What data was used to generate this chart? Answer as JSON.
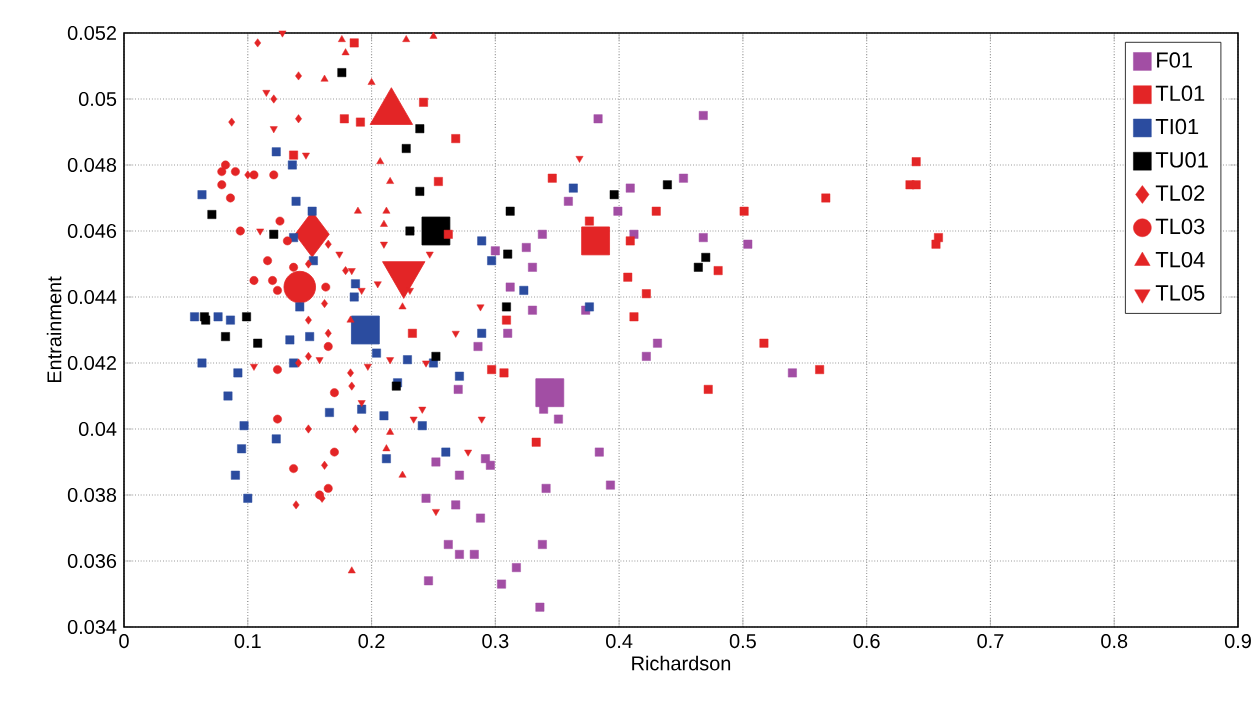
{
  "chart_data": {
    "type": "scatter",
    "xlabel": "Richardson",
    "ylabel": "Entrainment",
    "xlim": [
      0,
      0.9
    ],
    "ylim": [
      0.034,
      0.052
    ],
    "xticks": [
      0,
      0.1,
      0.2,
      0.3,
      0.4,
      0.5,
      0.6,
      0.7,
      0.8,
      0.9
    ],
    "yticks": [
      0.034,
      0.036,
      0.038,
      0.04,
      0.042,
      0.044,
      0.046,
      0.048,
      0.05,
      0.052
    ],
    "grid": true,
    "legend": "top right",
    "series": [
      {
        "name": "F01",
        "color": "#a24ea4",
        "marker": "square",
        "x": [
          0.383,
          0.468,
          0.409,
          0.452,
          0.359,
          0.399,
          0.338,
          0.412,
          0.468,
          0.325,
          0.3,
          0.33,
          0.312,
          0.373,
          0.33,
          0.31,
          0.286,
          0.27,
          0.339,
          0.351,
          0.384,
          0.252,
          0.292,
          0.296,
          0.271,
          0.268,
          0.244,
          0.288,
          0.341,
          0.393,
          0.262,
          0.271,
          0.283,
          0.338,
          0.246,
          0.317,
          0.305,
          0.336,
          0.504,
          0.54,
          0.431,
          0.422
        ],
        "values": [
          0.0494,
          0.0495,
          0.0473,
          0.0476,
          0.0469,
          0.0466,
          0.0459,
          0.0459,
          0.0458,
          0.0455,
          0.0454,
          0.0449,
          0.0443,
          0.0436,
          0.0436,
          0.0429,
          0.0425,
          0.0412,
          0.0406,
          0.0403,
          0.0393,
          0.039,
          0.0391,
          0.0389,
          0.0386,
          0.0377,
          0.0379,
          0.0373,
          0.0382,
          0.0383,
          0.0365,
          0.0362,
          0.0362,
          0.0365,
          0.0354,
          0.0358,
          0.0353,
          0.0346,
          0.0456,
          0.0417,
          0.0426,
          0.0422
        ]
      },
      {
        "name": "TL01",
        "color": "#e32526",
        "marker": "square",
        "x": [
          0.242,
          0.268,
          0.254,
          0.346,
          0.43,
          0.376,
          0.409,
          0.262,
          0.407,
          0.422,
          0.48,
          0.412,
          0.309,
          0.233,
          0.297,
          0.307,
          0.472,
          0.333,
          0.186,
          0.178,
          0.191,
          0.137,
          0.64,
          0.635,
          0.64,
          0.567,
          0.501,
          0.658,
          0.656,
          0.517,
          0.562
        ],
        "values": [
          0.0499,
          0.0488,
          0.0475,
          0.0476,
          0.0466,
          0.0463,
          0.0457,
          0.0459,
          0.0446,
          0.0441,
          0.0448,
          0.0434,
          0.0433,
          0.0429,
          0.0418,
          0.0417,
          0.0412,
          0.0396,
          0.0517,
          0.0494,
          0.0493,
          0.0483,
          0.0481,
          0.0474,
          0.0474,
          0.047,
          0.0466,
          0.0458,
          0.0456,
          0.0426,
          0.0418
        ]
      },
      {
        "name": "TI01",
        "color": "#2b4c9f",
        "marker": "square",
        "x": [
          0.123,
          0.136,
          0.063,
          0.139,
          0.152,
          0.137,
          0.153,
          0.187,
          0.186,
          0.142,
          0.057,
          0.076,
          0.086,
          0.134,
          0.15,
          0.063,
          0.092,
          0.084,
          0.137,
          0.229,
          0.221,
          0.166,
          0.192,
          0.21,
          0.241,
          0.097,
          0.095,
          0.123,
          0.09,
          0.1,
          0.212,
          0.204,
          0.25,
          0.363,
          0.289,
          0.297,
          0.323,
          0.376,
          0.289,
          0.271,
          0.26
        ],
        "values": [
          0.0484,
          0.048,
          0.0471,
          0.0469,
          0.0466,
          0.0458,
          0.0451,
          0.0444,
          0.044,
          0.0437,
          0.0434,
          0.0434,
          0.0433,
          0.0427,
          0.0428,
          0.042,
          0.0417,
          0.041,
          0.042,
          0.0421,
          0.0414,
          0.0405,
          0.0406,
          0.0404,
          0.0401,
          0.0401,
          0.0394,
          0.0397,
          0.0386,
          0.0379,
          0.0391,
          0.0423,
          0.042,
          0.0473,
          0.0457,
          0.0451,
          0.0442,
          0.0437,
          0.0429,
          0.0416,
          0.0393
        ]
      },
      {
        "name": "TU01",
        "color": "#000000",
        "marker": "square",
        "x": [
          0.176,
          0.239,
          0.228,
          0.239,
          0.071,
          0.121,
          0.231,
          0.099,
          0.065,
          0.066,
          0.082,
          0.108,
          0.22,
          0.252,
          0.312,
          0.31,
          0.309,
          0.396,
          0.439,
          0.47,
          0.464
        ],
        "values": [
          0.0508,
          0.0491,
          0.0485,
          0.0472,
          0.0465,
          0.0459,
          0.046,
          0.0434,
          0.0434,
          0.0433,
          0.0428,
          0.0426,
          0.0413,
          0.0422,
          0.0466,
          0.0453,
          0.0437,
          0.0471,
          0.0474,
          0.0452,
          0.0449
        ]
      },
      {
        "name": "TL02",
        "color": "#e32526",
        "marker": "diamond",
        "x": [
          0.108,
          0.141,
          0.087,
          0.141,
          0.121,
          0.1,
          0.165,
          0.149,
          0.179,
          0.162,
          0.149,
          0.165,
          0.149,
          0.141,
          0.183,
          0.184,
          0.149,
          0.187,
          0.162,
          0.16,
          0.139
        ],
        "values": [
          0.0517,
          0.0507,
          0.0493,
          0.0494,
          0.05,
          0.0477,
          0.0456,
          0.045,
          0.0448,
          0.0438,
          0.0433,
          0.0429,
          0.0422,
          0.042,
          0.0417,
          0.0413,
          0.04,
          0.04,
          0.0389,
          0.0379,
          0.0377
        ]
      },
      {
        "name": "TL03",
        "color": "#e32526",
        "marker": "circle",
        "x": [
          0.082,
          0.09,
          0.079,
          0.079,
          0.105,
          0.121,
          0.086,
          0.094,
          0.126,
          0.132,
          0.116,
          0.137,
          0.105,
          0.12,
          0.124,
          0.163,
          0.165,
          0.124,
          0.17,
          0.124,
          0.17,
          0.137,
          0.165,
          0.158
        ],
        "values": [
          0.048,
          0.0478,
          0.0478,
          0.0474,
          0.0477,
          0.0477,
          0.047,
          0.046,
          0.0463,
          0.0457,
          0.0451,
          0.0449,
          0.0445,
          0.0445,
          0.0442,
          0.0443,
          0.0425,
          0.0418,
          0.0411,
          0.0403,
          0.0393,
          0.0388,
          0.0382,
          0.038
        ]
      },
      {
        "name": "TL04",
        "color": "#e32526",
        "marker": "triangle",
        "x": [
          0.176,
          0.179,
          0.228,
          0.25,
          0.162,
          0.2,
          0.207,
          0.215,
          0.189,
          0.212,
          0.21,
          0.225,
          0.183,
          0.212,
          0.215,
          0.225,
          0.184
        ],
        "values": [
          0.0518,
          0.0514,
          0.0518,
          0.0519,
          0.0506,
          0.0505,
          0.0481,
          0.0475,
          0.0466,
          0.0466,
          0.0462,
          0.0437,
          0.0433,
          0.0394,
          0.0399,
          0.0386,
          0.0357
        ]
      },
      {
        "name": "TL05",
        "color": "#e32526",
        "marker": "triangle-down",
        "x": [
          0.128,
          0.115,
          0.121,
          0.147,
          0.11,
          0.174,
          0.184,
          0.205,
          0.192,
          0.231,
          0.247,
          0.21,
          0.105,
          0.158,
          0.197,
          0.215,
          0.244,
          0.192,
          0.241,
          0.234,
          0.252,
          0.368,
          0.288,
          0.268,
          0.289,
          0.278
        ],
        "values": [
          0.052,
          0.0502,
          0.0491,
          0.0483,
          0.046,
          0.0453,
          0.0448,
          0.0444,
          0.0442,
          0.0442,
          0.0453,
          0.0456,
          0.0419,
          0.0421,
          0.0419,
          0.0421,
          0.042,
          0.0408,
          0.0406,
          0.0403,
          0.0375,
          0.0482,
          0.0437,
          0.0429,
          0.0403,
          0.0393
        ]
      },
      {
        "type": "bubble",
        "color": "#a24ea4",
        "marker": "square",
        "x": [
          0.344
        ],
        "values": [
          0.0411
        ],
        "sizes": [
          1
        ]
      },
      {
        "type": "bubble",
        "color": "#e32526",
        "marker": "square",
        "x": [
          0.381
        ],
        "values": [
          0.0457
        ],
        "sizes": [
          1
        ]
      },
      {
        "type": "bubble",
        "color": "#2b4c9f",
        "marker": "square",
        "x": [
          0.195
        ],
        "values": [
          0.043
        ],
        "sizes": [
          1
        ]
      },
      {
        "type": "bubble",
        "color": "#000000",
        "marker": "square",
        "x": [
          0.252
        ],
        "values": [
          0.046
        ],
        "sizes": [
          1
        ]
      },
      {
        "type": "bubble",
        "color": "#e32526",
        "marker": "diamond",
        "x": [
          0.152
        ],
        "values": [
          0.0459
        ],
        "sizes": [
          1
        ]
      },
      {
        "type": "bubble",
        "color": "#e32526",
        "marker": "circle",
        "x": [
          0.142
        ],
        "values": [
          0.0443
        ],
        "sizes": [
          1
        ]
      },
      {
        "type": "bubble",
        "color": "#e32526",
        "marker": "triangle",
        "x": [
          0.216
        ],
        "values": [
          0.0496
        ],
        "sizes": [
          1
        ]
      },
      {
        "type": "bubble",
        "color": "#e32526",
        "marker": "triangle-down",
        "x": [
          0.226
        ],
        "values": [
          0.0447
        ],
        "sizes": [
          1
        ]
      }
    ]
  }
}
